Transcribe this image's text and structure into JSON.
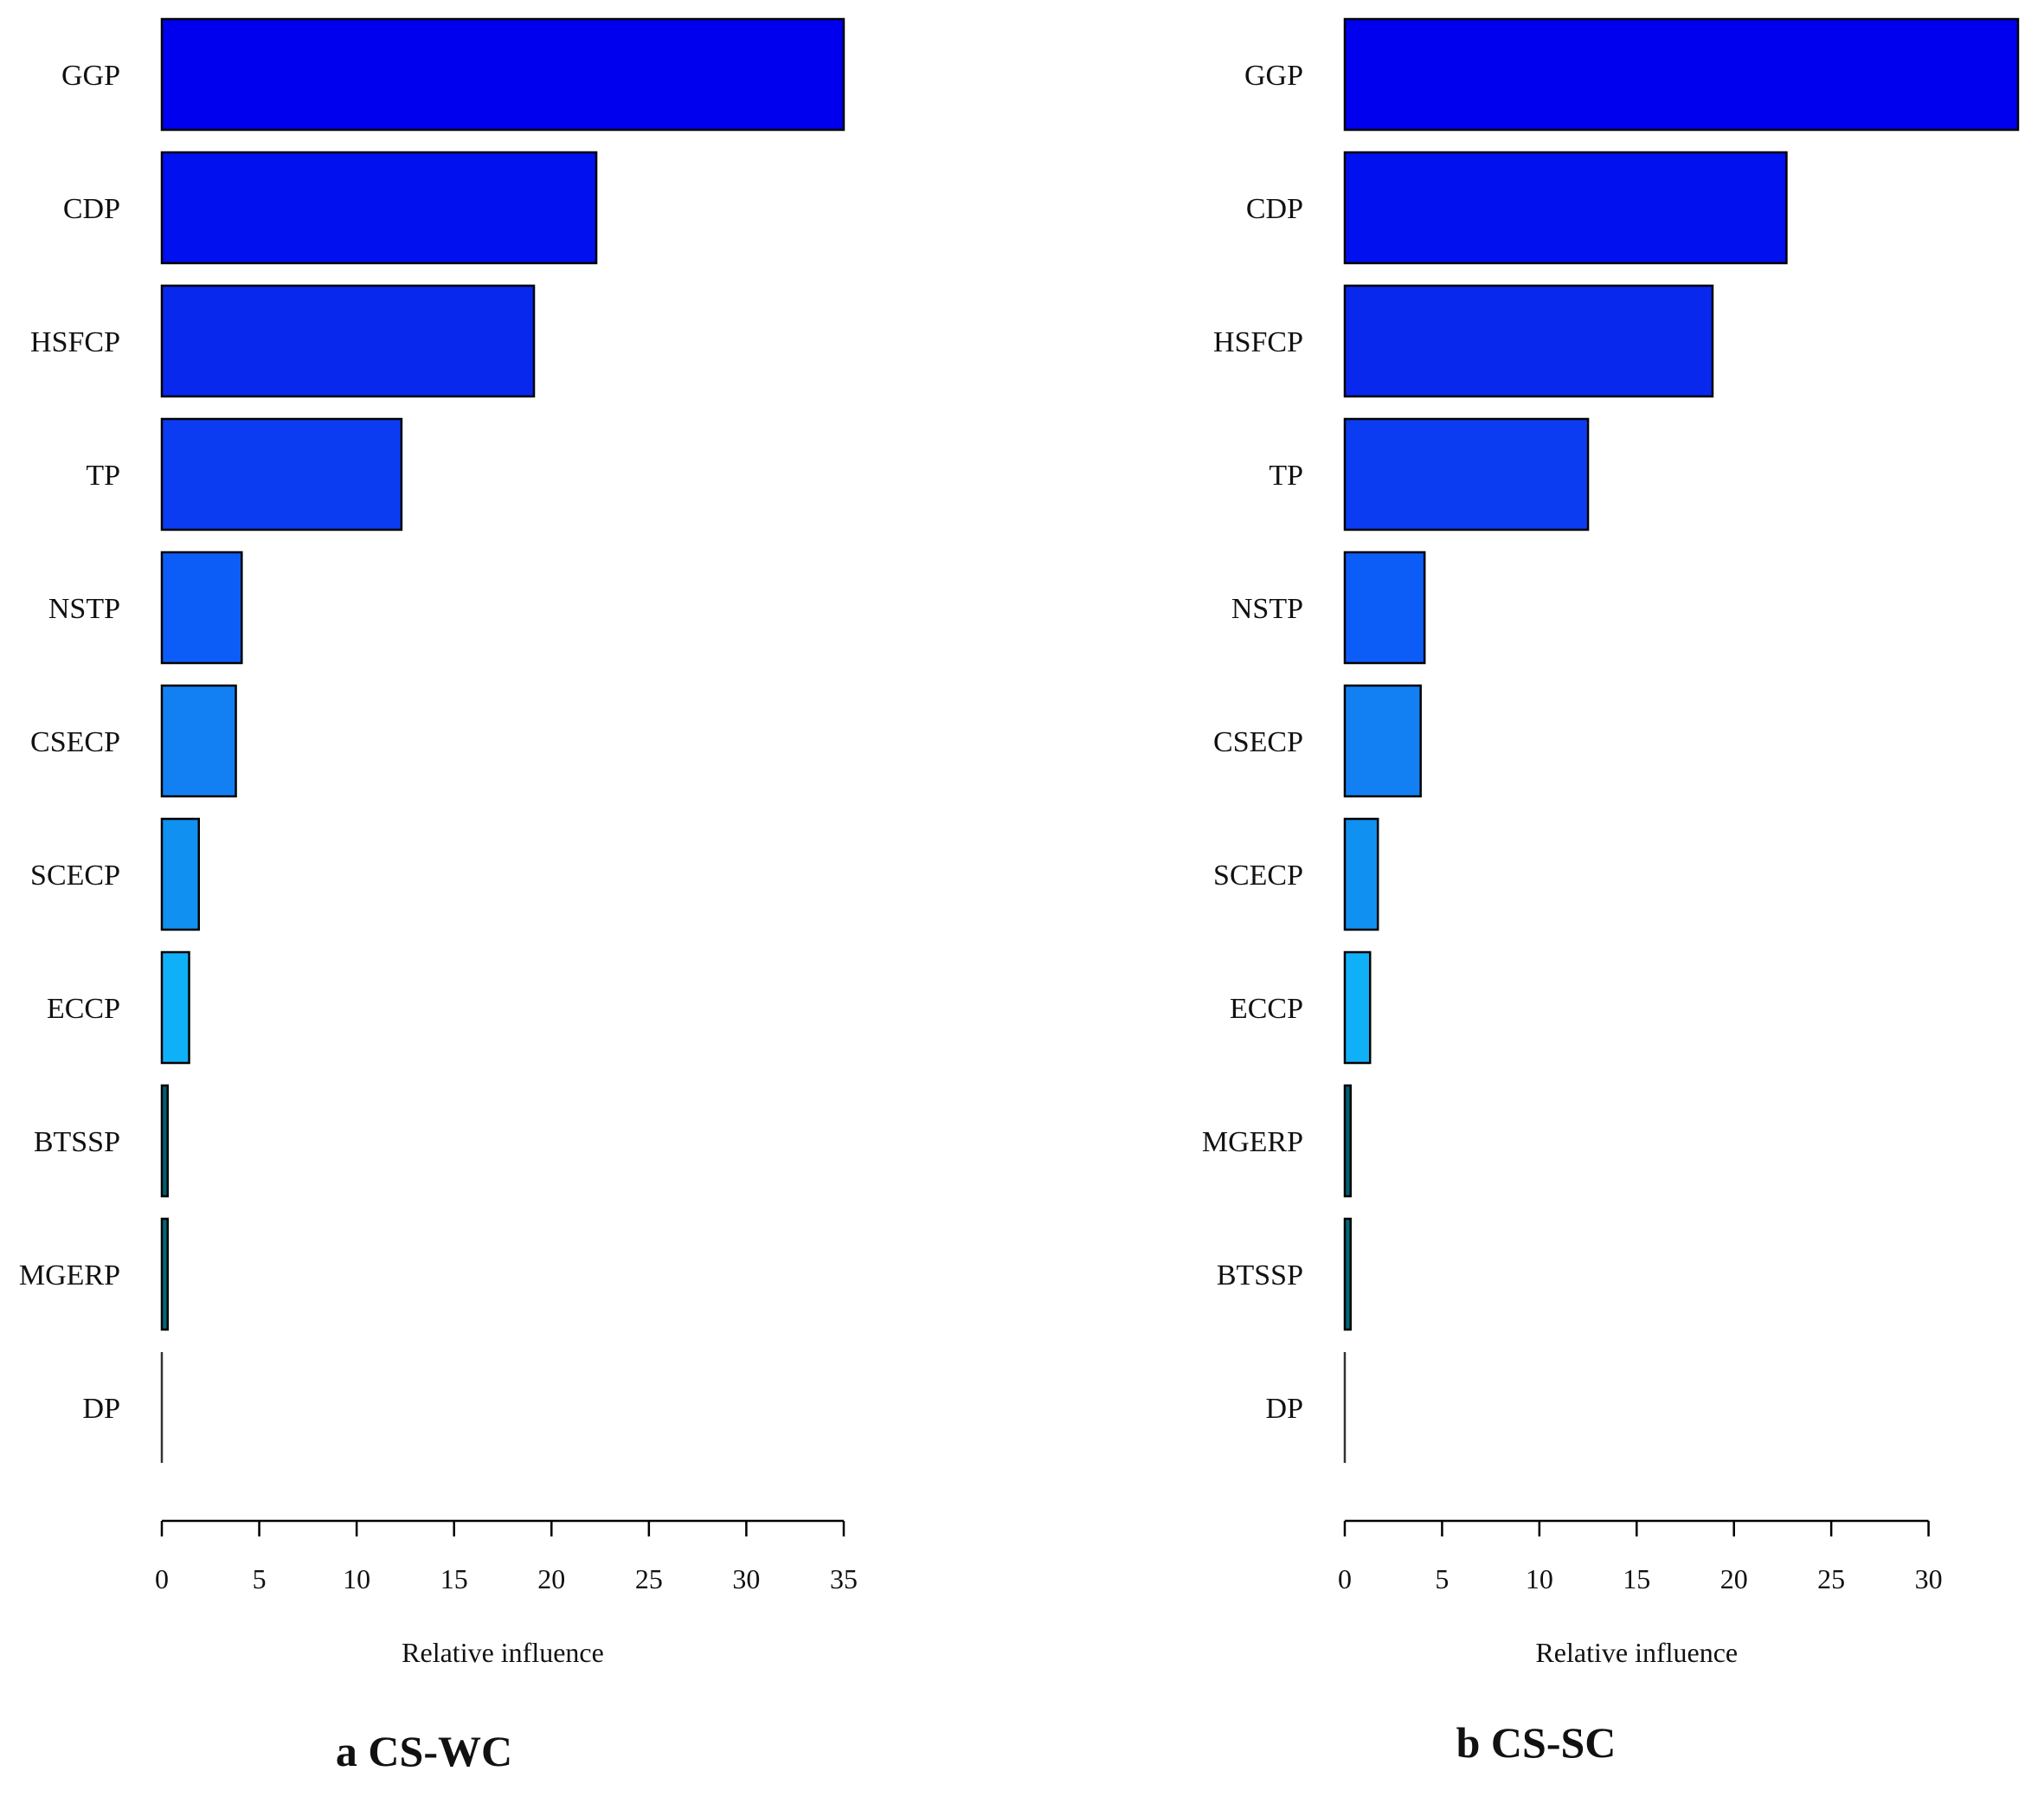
{
  "chart_data": [
    {
      "type": "bar",
      "orientation": "horizontal",
      "title": "a CS-WC",
      "xlabel": "Relative influence",
      "ylabel": "",
      "xlim": [
        0,
        35
      ],
      "xticks": [
        0,
        5,
        10,
        15,
        20,
        25,
        30,
        35
      ],
      "categories": [
        "GGP",
        "CDP",
        "HSFCP",
        "TP",
        "NSTP",
        "CSECP",
        "SCECP",
        "ECCP",
        "BTSSP",
        "MGERP",
        "DP"
      ],
      "values": [
        35.0,
        22.3,
        19.1,
        12.3,
        4.1,
        3.8,
        1.9,
        1.4,
        0.3,
        0.3,
        0.0
      ],
      "colors": [
        "#0000EE",
        "#0010EE",
        "#0828EE",
        "#0C3CF2",
        "#0C5CF8",
        "#1280F2",
        "#1090F0",
        "#10B0F8",
        "#006070",
        "#006878",
        "#333333"
      ],
      "grid": false,
      "legend": "none"
    },
    {
      "type": "bar",
      "orientation": "horizontal",
      "title": "b CS-SC",
      "xlabel": "Relative influence",
      "ylabel": "",
      "xlim": [
        0,
        35
      ],
      "xticks": [
        0,
        5,
        10,
        15,
        20,
        25,
        30
      ],
      "categories": [
        "GGP",
        "CDP",
        "HSFCP",
        "TP",
        "NSTP",
        "CSECP",
        "SCECP",
        "ECCP",
        "MGERP",
        "BTSSP",
        "DP"
      ],
      "values": [
        34.6,
        22.7,
        18.9,
        12.5,
        4.1,
        3.9,
        1.7,
        1.3,
        0.3,
        0.3,
        0.0
      ],
      "colors": [
        "#0000EE",
        "#0010EE",
        "#0828EE",
        "#0C3CF2",
        "#0C5CF8",
        "#1280F2",
        "#1090F0",
        "#10B0F8",
        "#006070",
        "#006878",
        "#333333"
      ],
      "grid": false,
      "legend": "none"
    }
  ]
}
